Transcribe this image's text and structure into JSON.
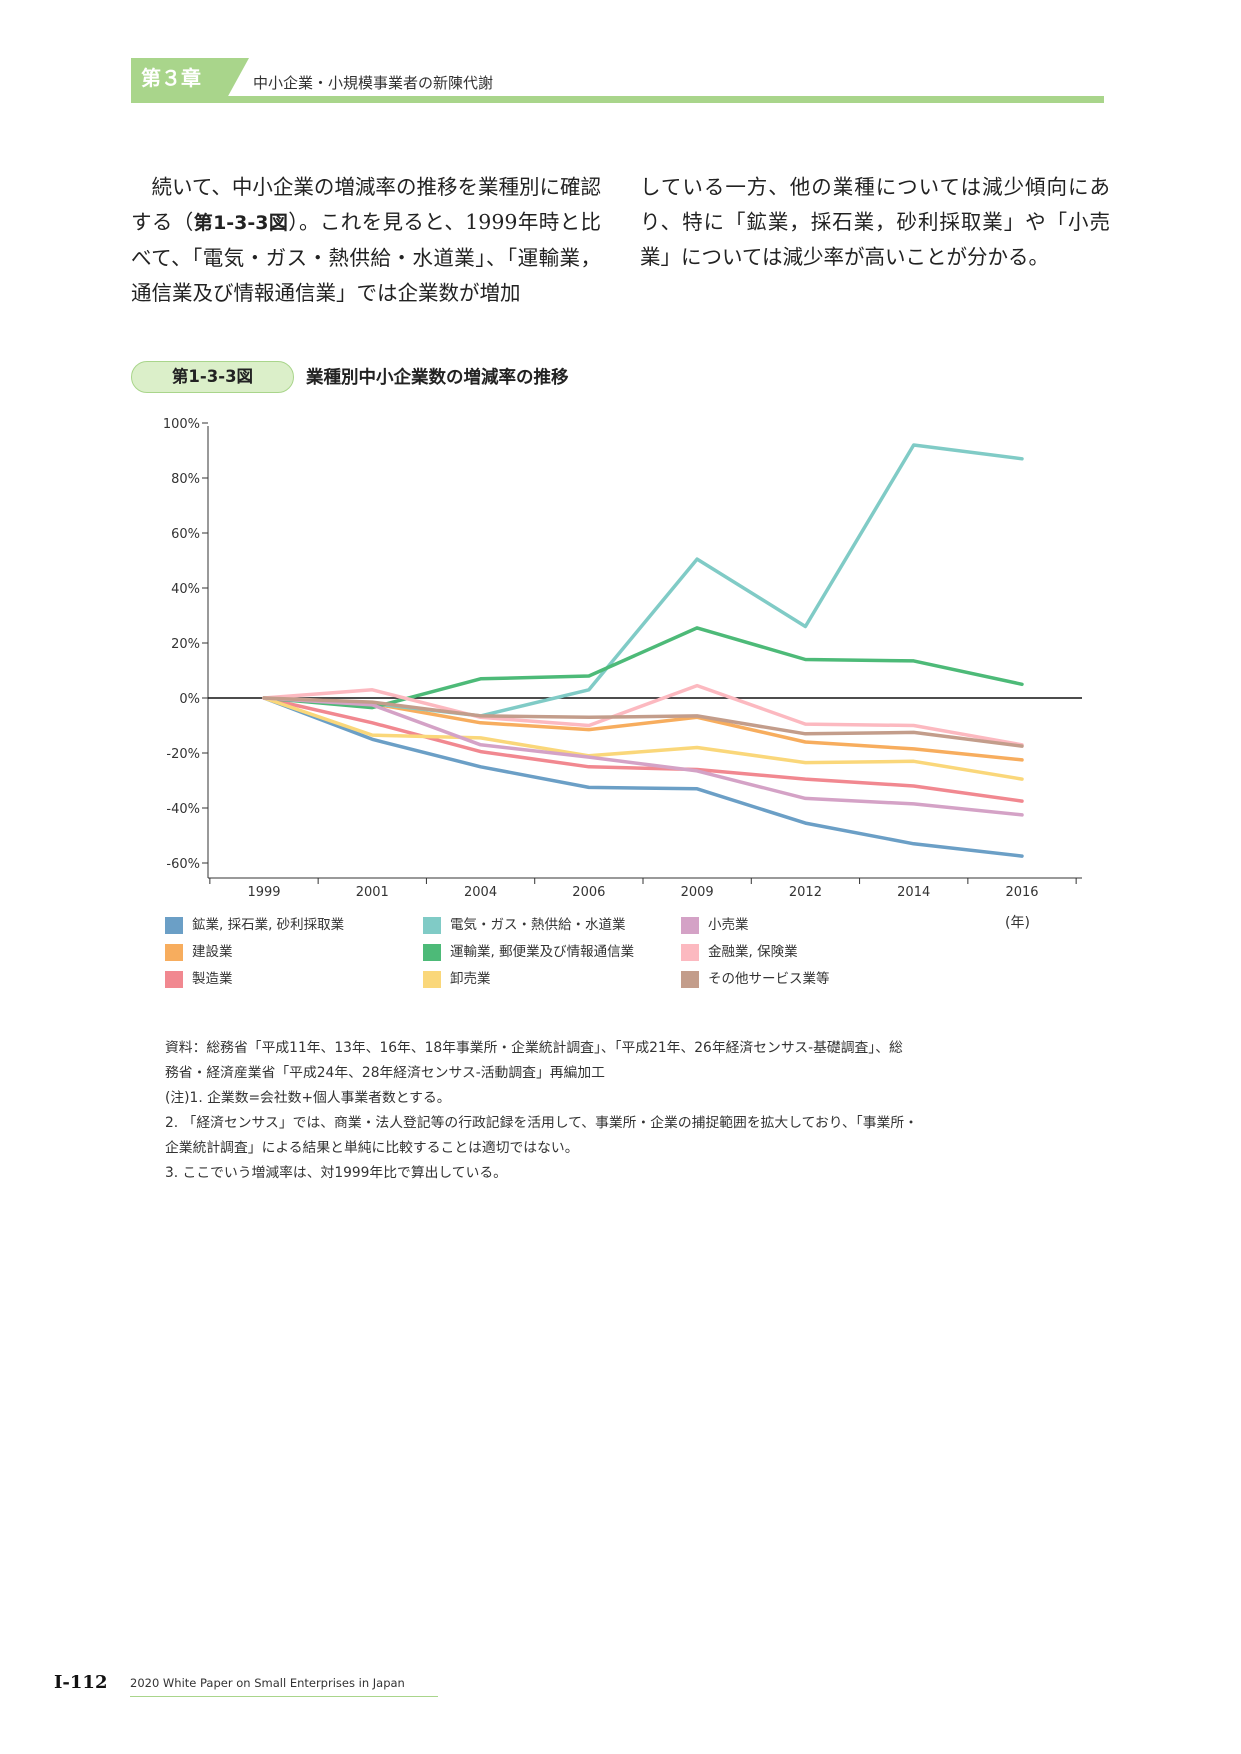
{
  "header": {
    "chapter_label": "第３章",
    "chapter_title": "中小企業・小規模事業者の新陳代謝"
  },
  "body": {
    "left_p1": "続いて、中小企業の増減率の推移を業種別に確認する（",
    "fig_ref": "第1-3-3図",
    "left_p2": "）。これを見ると、1999年時と比べて、「電気・ガス・熱供給・水道業」、「運輸業，通信業及び情報通信業」では企業数が増加",
    "right": "している一方、他の業種については減少傾向にあり、特に「鉱業，採石業，砂利採取業」や「小売業」については減少率が高いことが分かる。"
  },
  "figure": {
    "label": "第1-3-3図",
    "title": "業種別中小企業数の増減率の推移"
  },
  "chart_data": {
    "type": "line",
    "x": [
      "1999",
      "2001",
      "2004",
      "2006",
      "2009",
      "2012",
      "2014",
      "2016"
    ],
    "ylim": [
      -60,
      100
    ],
    "yticks": [
      100,
      80,
      60,
      40,
      20,
      0,
      -20,
      -40,
      -60
    ],
    "ytick_labels": [
      "100%",
      "80%",
      "60%",
      "40%",
      "20%",
      "0%",
      "-20%",
      "-40%",
      "-60%"
    ],
    "x_unit": "(年)",
    "series": [
      {
        "name": "鉱業, 採石業, 砂利採取業",
        "color": "#6b9fc6",
        "values": [
          0,
          -15,
          -25,
          -32.5,
          -33,
          -45.5,
          -53,
          -57.5
        ]
      },
      {
        "name": "建設業",
        "color": "#f7ad5e",
        "values": [
          0,
          -2,
          -9,
          -11.5,
          -7,
          -16,
          -18.5,
          -22.5
        ]
      },
      {
        "name": "製造業",
        "color": "#f18890",
        "values": [
          0,
          -9,
          -19.5,
          -25,
          -26,
          -29.5,
          -32,
          -37.5
        ]
      },
      {
        "name": "電気・ガス・熱供給・水道業",
        "color": "#80cbc6",
        "values": [
          0,
          -2,
          -6.5,
          3,
          50.5,
          26,
          92,
          87
        ]
      },
      {
        "name": "運輸業, 郵便業及び情報通信業",
        "color": "#4dba78",
        "values": [
          0,
          -3.5,
          7,
          8,
          25.5,
          14,
          13.5,
          5
        ]
      },
      {
        "name": "卸売業",
        "color": "#fad77a",
        "values": [
          0,
          -13.5,
          -14.5,
          -21,
          -18,
          -23.5,
          -23,
          -29.5
        ]
      },
      {
        "name": "小売業",
        "color": "#d4a2c6",
        "values": [
          0,
          -2.5,
          -17,
          -21.5,
          -26.5,
          -36.5,
          -38.5,
          -42.5
        ]
      },
      {
        "name": "金融業, 保険業",
        "color": "#fcb9c0",
        "values": [
          0,
          3,
          -7,
          -10,
          4.5,
          -9.5,
          -10,
          -17
        ]
      },
      {
        "name": "その他サービス業等",
        "color": "#c39d8b",
        "values": [
          0,
          -1.5,
          -6.5,
          -7,
          -6.5,
          -13,
          -12.5,
          -17.5
        ]
      }
    ]
  },
  "notes": [
    "資料：総務省「平成11年、13年、16年、18年事業所・企業統計調査」、「平成21年、26年経済センサス‐基礎調査」、総",
    "務省・経済産業省「平成24年、28年経済センサス‐活動調査」再編加工",
    "(注)1. 企業数=会社数+個人事業者数とする。",
    "2. 「経済センサス」では、商業・法人登記等の行政記録を活用して、事業所・企業の捕捉範囲を拡大しており、「事業所・",
    "企業統計調査」による結果と単純に比較することは適切ではない。",
    "3. ここでいう増減率は、対1999年比で算出している。"
  ],
  "footer": {
    "page_number": "Ⅰ-112",
    "publication": "2020 White Paper on Small Enterprises in Japan"
  }
}
